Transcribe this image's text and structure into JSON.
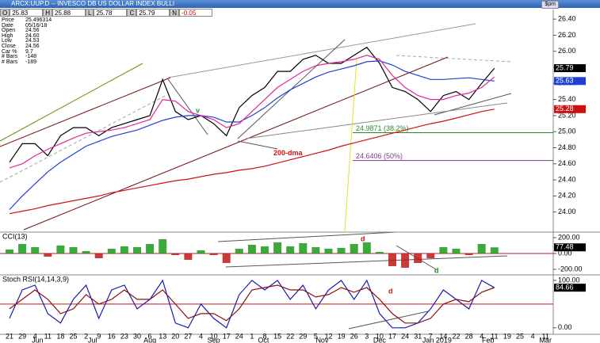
{
  "header": {
    "title": "ARCX:UUP.D -- INVESCO DB US DOLLAR INDEX BULLI",
    "button": "$pm",
    "quote": [
      {
        "label": "O",
        "value": 25.83
      },
      {
        "label": "H",
        "value": 25.88
      },
      {
        "label": "L",
        "value": 25.78
      },
      {
        "label": "C",
        "value": 25.79
      },
      {
        "label": "N",
        "value": -0.05
      }
    ],
    "info": [
      [
        "Price",
        "25.496314"
      ],
      [
        "Date",
        "05/16/18"
      ],
      [
        "Open",
        "24.56"
      ],
      [
        "High",
        "24.60"
      ],
      [
        "Low",
        "24.53"
      ],
      [
        "Close",
        "24.56"
      ],
      [
        "Car %",
        "9.7"
      ],
      [
        "# Bars",
        "-148"
      ],
      [
        "# Bars",
        "-189"
      ]
    ]
  },
  "chart_data": [
    {
      "type": "line",
      "categories": [
        "21",
        "29",
        "4",
        "11",
        "18",
        "25",
        "2",
        "9",
        "16",
        "23",
        "30",
        "6",
        "13",
        "20",
        "27",
        "4",
        "10",
        "17",
        "24",
        "1",
        "8",
        "15",
        "22",
        "29",
        "5",
        "12",
        "19",
        "26",
        "3",
        "10",
        "17",
        "24",
        "31",
        "7",
        "14",
        "22",
        "28",
        "4",
        "11",
        "19",
        "25",
        "4",
        "11"
      ],
      "months": [
        "Jun",
        "Jul",
        "Aug",
        "Sep",
        "Oct",
        "Nov",
        "Dec",
        "Jan 2019",
        "Feb",
        "Mar"
      ],
      "ylim": [
        23.76,
        26.52
      ],
      "yticks": [
        {
          "value": 24.0,
          "label": "24.00"
        },
        {
          "value": 24.2,
          "label": "24.20"
        },
        {
          "value": 24.4,
          "label": "24.40"
        },
        {
          "value": 24.6,
          "label": "24.60"
        },
        {
          "value": 24.8,
          "label": "24.80"
        },
        {
          "value": 25.0,
          "label": "25.00"
        },
        {
          "value": 25.2,
          "label": "25.20"
        },
        {
          "value": 25.4,
          "label": "25.40"
        },
        {
          "value": 25.6,
          "label": "25.60"
        },
        {
          "value": 25.8,
          "label": "25.80"
        },
        {
          "value": 26.0,
          "label": "26.00"
        },
        {
          "value": 26.2,
          "label": "26.20"
        },
        {
          "value": 26.4,
          "label": "26.40"
        }
      ],
      "series": [
        {
          "color": "#000000",
          "values": [
            24.62,
            24.85,
            24.85,
            24.7,
            24.95,
            25.05,
            25.05,
            24.95,
            25.05,
            25.1,
            25.15,
            25.2,
            25.65,
            25.25,
            25.15,
            25.2,
            25.1,
            24.95,
            25.3,
            25.45,
            25.55,
            25.75,
            25.75,
            25.9,
            25.95,
            25.85,
            25.85,
            25.95,
            26.05,
            25.85,
            25.55,
            25.5,
            25.4,
            25.25,
            25.45,
            25.5,
            25.4,
            25.6,
            25.79,
            null,
            null,
            null,
            null
          ]
        },
        {
          "color": "#1f3fd6",
          "values": [
            24.03,
            24.2,
            24.35,
            24.5,
            24.62,
            24.72,
            24.82,
            24.88,
            24.94,
            24.98,
            25.02,
            25.08,
            25.14,
            25.18,
            25.2,
            25.2,
            25.18,
            25.12,
            25.12,
            25.2,
            25.3,
            25.42,
            25.52,
            25.6,
            25.68,
            25.74,
            25.78,
            25.82,
            25.87,
            25.88,
            25.83,
            25.75,
            25.7,
            25.65,
            25.65,
            25.66,
            25.67,
            25.65,
            25.63,
            null,
            null,
            null,
            null
          ]
        },
        {
          "color": "#e0289a",
          "values": [
            24.55,
            24.6,
            24.7,
            24.78,
            24.85,
            24.92,
            24.98,
            25.0,
            25.02,
            25.05,
            25.1,
            25.15,
            25.4,
            25.38,
            25.25,
            25.2,
            25.15,
            25.05,
            25.1,
            25.25,
            25.4,
            25.55,
            25.65,
            25.75,
            25.82,
            25.85,
            25.87,
            25.9,
            25.95,
            25.9,
            25.7,
            25.55,
            25.45,
            25.4,
            25.4,
            25.45,
            25.48,
            25.55,
            25.68,
            null,
            null,
            null,
            null
          ]
        },
        {
          "name": "200-dma",
          "color": "#d01010",
          "values": [
            23.98,
            24.01,
            24.04,
            24.08,
            24.11,
            24.14,
            24.17,
            24.2,
            24.24,
            24.27,
            24.3,
            24.33,
            24.36,
            24.39,
            24.41,
            24.44,
            24.47,
            24.49,
            24.52,
            24.54,
            24.57,
            24.61,
            24.65,
            24.69,
            24.73,
            24.77,
            24.82,
            24.86,
            24.9,
            24.94,
            24.98,
            25.02,
            25.06,
            25.1,
            25.13,
            25.17,
            25.21,
            25.25,
            25.28,
            null,
            null,
            null,
            null
          ]
        }
      ],
      "last_values": [
        {
          "value": 25.79,
          "color": "#000000"
        },
        {
          "value": 25.63,
          "color": "#1f3fd6"
        },
        {
          "value": 25.28,
          "color": "#d01010"
        }
      ],
      "levels": [
        {
          "value": 24.9871,
          "label": "24.9871 (38.2%)",
          "color": "#2a8a2a"
        },
        {
          "value": 24.6406,
          "label": "24.6406 (50%)",
          "color": "#7a3a8a"
        }
      ],
      "annotations": [
        {
          "text": "v",
          "color": "#2a9a2a"
        }
      ]
    },
    {
      "type": "bar",
      "title": "CCI(13)",
      "ylim": [
        -260,
        260
      ],
      "yticks": [
        {
          "value": 200,
          "label": "200.00"
        },
        {
          "value": 0,
          "label": "0.00"
        },
        {
          "value": -200,
          "label": "-200.00"
        }
      ],
      "values": [
        50,
        120,
        80,
        -40,
        100,
        80,
        30,
        -60,
        60,
        90,
        80,
        120,
        180,
        -20,
        -80,
        40,
        -20,
        -120,
        60,
        110,
        90,
        140,
        90,
        130,
        80,
        60,
        70,
        120,
        140,
        20,
        -160,
        -180,
        -120,
        -60,
        80,
        60,
        -20,
        120,
        77.48,
        null,
        null,
        null,
        null
      ],
      "positive_color": "#1a9a1a",
      "negative_color": "#c01818",
      "last_values": [
        {
          "value": 77.48,
          "color": "#000000"
        }
      ],
      "annotations": [
        {
          "text": "d",
          "color": "#d01010"
        },
        {
          "text": "d",
          "color": "#1a8a1a"
        }
      ]
    },
    {
      "type": "line",
      "title": "Stoch RSI(14,14,3,9)",
      "ylim": [
        -12,
        110
      ],
      "yticks": [
        {
          "value": 100,
          "label": "100.00"
        },
        {
          "value": 0,
          "label": "0.00"
        }
      ],
      "reference": 50,
      "series": [
        {
          "color": "#1a1ab0",
          "values": [
            20,
            80,
            90,
            30,
            10,
            60,
            90,
            20,
            80,
            90,
            40,
            60,
            100,
            10,
            0,
            50,
            20,
            0,
            70,
            100,
            80,
            100,
            60,
            90,
            40,
            80,
            100,
            60,
            100,
            30,
            0,
            0,
            10,
            40,
            80,
            60,
            40,
            100,
            84.66,
            null,
            null,
            null,
            null
          ]
        },
        {
          "color": "#8a1010",
          "values": [
            40,
            60,
            80,
            60,
            30,
            40,
            70,
            50,
            60,
            80,
            60,
            60,
            80,
            50,
            20,
            30,
            30,
            15,
            40,
            80,
            85,
            90,
            80,
            80,
            65,
            70,
            85,
            75,
            85,
            60,
            30,
            10,
            10,
            20,
            50,
            60,
            55,
            75,
            85,
            null,
            null,
            null,
            null
          ]
        }
      ],
      "last_values": [
        {
          "value": 84.66,
          "color": "#000000"
        }
      ],
      "annotations": [
        {
          "text": "d",
          "color": "#d01010"
        }
      ]
    }
  ]
}
